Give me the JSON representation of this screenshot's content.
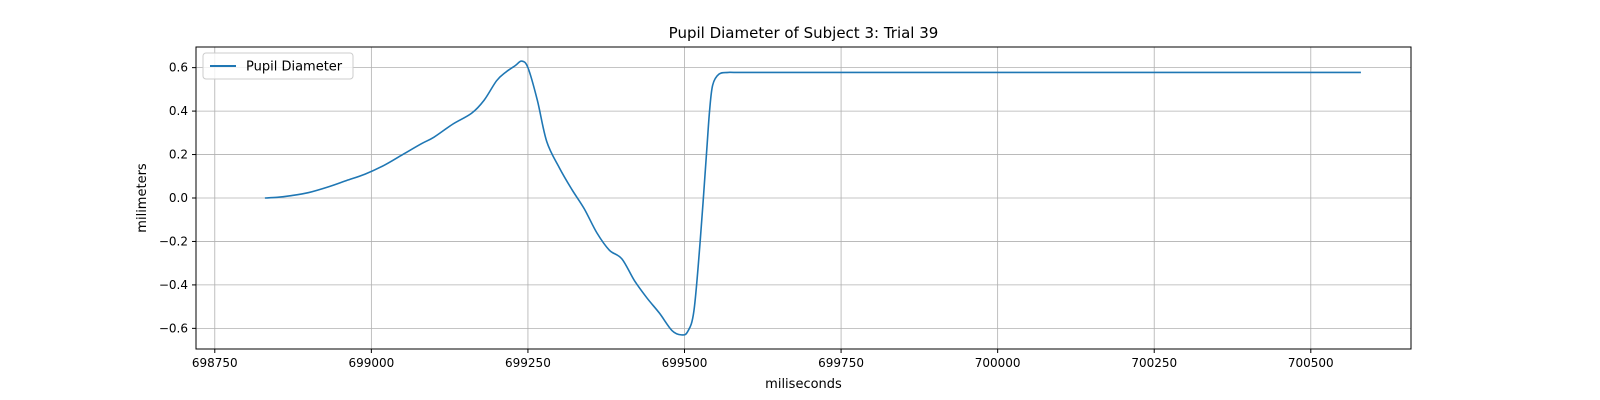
{
  "chart_data": {
    "type": "line",
    "title": "Pupil Diameter of Subject 3: Trial 39",
    "xlabel": "miliseconds",
    "ylabel": "milimeters",
    "xlim": [
      698720,
      700660
    ],
    "ylim": [
      -0.695,
      0.695
    ],
    "xticks": [
      698750,
      699000,
      699250,
      699500,
      699750,
      700000,
      700250,
      700500
    ],
    "xtick_labels": [
      "698750",
      "699000",
      "699250",
      "699500",
      "699750",
      "700000",
      "700250",
      "700500"
    ],
    "yticks": [
      -0.6,
      -0.4,
      -0.2,
      0.0,
      0.2,
      0.4,
      0.6
    ],
    "ytick_labels": [
      "−0.6",
      "−0.4",
      "−0.2",
      "0.0",
      "0.2",
      "0.4",
      "0.6"
    ],
    "grid": true,
    "legend": {
      "placement": "top-left",
      "entries": [
        "Pupil Diameter"
      ]
    },
    "series": [
      {
        "name": "Pupil Diameter",
        "color": "#1f77b4",
        "x": [
          698830,
          698850,
          698870,
          698900,
          698930,
          698960,
          698990,
          699020,
          699050,
          699080,
          699100,
          699130,
          699160,
          699180,
          699200,
          699215,
          699230,
          699240,
          699250,
          699265,
          699280,
          699300,
          699320,
          699340,
          699360,
          699380,
          699400,
          699420,
          699440,
          699460,
          699480,
          699495,
          699505,
          699515,
          699525,
          699535,
          699540,
          699545,
          699555,
          699570,
          699600,
          699800,
          700000,
          700250,
          700580
        ],
        "y": [
          0.0,
          0.003,
          0.01,
          0.025,
          0.05,
          0.08,
          0.11,
          0.15,
          0.2,
          0.25,
          0.28,
          0.34,
          0.39,
          0.45,
          0.54,
          0.58,
          0.61,
          0.63,
          0.6,
          0.45,
          0.26,
          0.14,
          0.04,
          -0.05,
          -0.16,
          -0.24,
          -0.28,
          -0.38,
          -0.46,
          -0.53,
          -0.61,
          -0.63,
          -0.615,
          -0.52,
          -0.2,
          0.2,
          0.4,
          0.52,
          0.57,
          0.578,
          0.578,
          0.578,
          0.578,
          0.578,
          0.578
        ]
      }
    ]
  }
}
